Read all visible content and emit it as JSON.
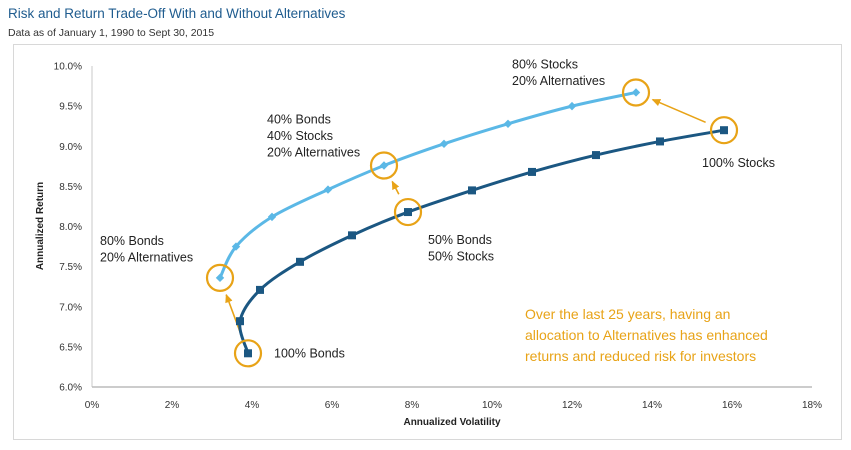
{
  "title": "Risk and Return Trade-Off With and Without Alternatives",
  "subtitle": "Data as of January 1, 1990 to Sept 30, 2015",
  "colors": {
    "with_alternatives": "#5bb8e6",
    "without_alternatives": "#1b5782",
    "highlight": "#e8a317"
  },
  "chart_data": {
    "type": "line",
    "xlabel": "Annualized Volatility",
    "ylabel": "Annualized Return",
    "xlim": [
      0,
      18
    ],
    "ylim": [
      6.0,
      10.0
    ],
    "x_ticks": [
      "0%",
      "2%",
      "4%",
      "6%",
      "8%",
      "10%",
      "12%",
      "14%",
      "16%",
      "18%"
    ],
    "y_ticks": [
      "6.0%",
      "6.5%",
      "7.0%",
      "7.5%",
      "8.0%",
      "8.5%",
      "9.0%",
      "9.5%",
      "10.0%"
    ],
    "grid": false,
    "legend": "none",
    "series": [
      {
        "marker": "diamond",
        "x": [
          3.2,
          3.6,
          4.5,
          5.9,
          7.3,
          8.8,
          10.4,
          12.0,
          13.6
        ],
        "y": [
          7.36,
          7.75,
          8.12,
          8.46,
          8.76,
          9.03,
          9.28,
          9.5,
          9.67
        ]
      },
      {
        "marker": "square",
        "x": [
          3.9,
          3.7,
          4.2,
          5.2,
          6.5,
          7.9,
          9.5,
          11.0,
          12.6,
          14.2,
          15.8
        ],
        "y": [
          6.42,
          6.82,
          7.21,
          7.56,
          7.89,
          8.18,
          8.45,
          8.68,
          8.89,
          9.06,
          9.2
        ]
      }
    ],
    "annotations": [
      {
        "lines": [
          "80% Bonds",
          "20% Alternatives"
        ],
        "x": 3.2,
        "y": 7.36
      },
      {
        "lines": [
          "40% Bonds",
          "40% Stocks",
          "20% Alternatives"
        ],
        "x": 7.3,
        "y": 8.76
      },
      {
        "lines": [
          "80% Stocks",
          "20% Alternatives"
        ],
        "x": 13.6,
        "y": 9.67
      },
      {
        "lines": [
          "100% Bonds"
        ],
        "x": 3.9,
        "y": 6.42
      },
      {
        "lines": [
          "50% Bonds",
          "50% Stocks"
        ],
        "x": 7.9,
        "y": 8.18
      },
      {
        "lines": [
          "100% Stocks"
        ],
        "x": 15.8,
        "y": 9.2
      }
    ],
    "callout": [
      "Over the last 25 years, having an",
      "allocation to Alternatives has enhanced",
      "returns and reduced risk for investors"
    ]
  }
}
